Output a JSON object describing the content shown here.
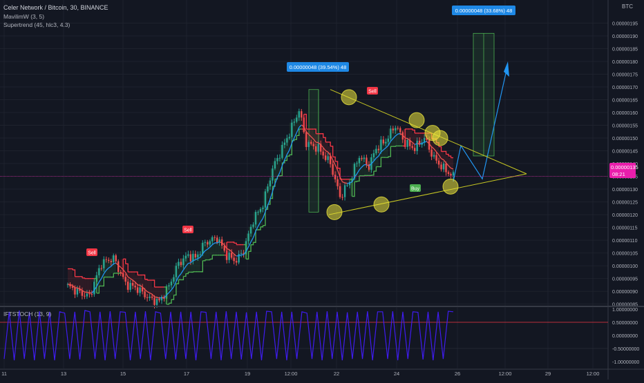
{
  "header": {
    "symbol_line": "Celer Network / Bitcoin, 30, BINANCE",
    "indicators": [
      "MavilimW (3, 5)",
      "Supertrend (45, hlc3, 4.3)"
    ],
    "currency": "BTC"
  },
  "oscillator": {
    "label": "IFTSTOCH (13, 9)"
  },
  "price_label": {
    "value": "0.00000135",
    "countdown": "08:21"
  },
  "measure_labels": [
    "0.00000048 (39.54%) 48",
    "0.00000048 (33.68%) 48"
  ],
  "signals": [
    "Sell",
    "Sell",
    "Sell",
    "Buy"
  ],
  "colors": {
    "background": "#131722",
    "bull": "#26a69a",
    "bear": "#ef5350",
    "supertrend_up": "#4caf50",
    "supertrend_down": "#f23645",
    "projection": "#2196f3",
    "trendline": "#c8c822",
    "price_label": "#e91eab",
    "oscillator": "#3f1cf0"
  },
  "chart_data": [
    {
      "type": "candlestick",
      "title": "Celer Network / Bitcoin, 30, BINANCE",
      "y_axis": {
        "ylim": [
          8.1e-07,
          1.96e-06
        ],
        "tick_labels": [
          "0.00000085",
          "0.00000090",
          "0.00000095",
          "0.00000100",
          "0.00000105",
          "0.00000110",
          "0.00000115",
          "0.00000120",
          "0.00000125",
          "0.00000130",
          "0.00000135",
          "0.00000140",
          "0.00000145",
          "0.00000150",
          "0.00000155",
          "0.00000160",
          "0.00000165",
          "0.00000170",
          "0.00000175",
          "0.00000180",
          "0.00000185",
          "0.00000190",
          "0.00000195"
        ]
      },
      "x_axis": {
        "tick_labels": [
          "11",
          "13",
          "15",
          "17",
          "19",
          "12:00",
          "22",
          "24",
          "26",
          "12:00",
          "29",
          "12:00"
        ]
      },
      "grid": true,
      "price_anchors": [
        [
          0,
          9.2e-07
        ],
        [
          6,
          8.9e-07
        ],
        [
          9,
          8.8e-07
        ],
        [
          14,
          1.01e-06
        ],
        [
          19,
          1.03e-06
        ],
        [
          24,
          9.3e-07
        ],
        [
          29,
          9.1e-07
        ],
        [
          34,
          8.7e-07
        ],
        [
          38,
          8.6e-07
        ],
        [
          42,
          9.2e-07
        ],
        [
          46,
          1.01e-06
        ],
        [
          50,
          1.04e-06
        ],
        [
          53,
          1.03e-06
        ],
        [
          57,
          1.09e-06
        ],
        [
          62,
          1.11e-06
        ],
        [
          66,
          1.04e-06
        ],
        [
          70,
          1.02e-06
        ],
        [
          73,
          1.06e-06
        ],
        [
          77,
          1.18e-06
        ],
        [
          81,
          1.24e-06
        ],
        [
          85,
          1.38e-06
        ],
        [
          88,
          1.44e-06
        ],
        [
          92,
          1.52e-06
        ],
        [
          96,
          1.61e-06
        ],
        [
          99,
          1.48e-06
        ],
        [
          104,
          1.46e-06
        ],
        [
          109,
          1.4e-06
        ],
        [
          113,
          1.27e-06
        ],
        [
          117,
          1.33e-06
        ],
        [
          121,
          1.43e-06
        ],
        [
          125,
          1.39e-06
        ],
        [
          128,
          1.46e-06
        ],
        [
          132,
          1.49e-06
        ],
        [
          136,
          1.55e-06
        ],
        [
          140,
          1.48e-06
        ],
        [
          144,
          1.46e-06
        ],
        [
          148,
          1.5e-06
        ],
        [
          152,
          1.42e-06
        ],
        [
          156,
          1.38e-06
        ],
        [
          160,
          1.35e-06
        ]
      ],
      "annotations": [
        {
          "text": "Sell",
          "type": "sell"
        },
        {
          "text": "Sell",
          "type": "sell"
        },
        {
          "text": "Sell",
          "type": "sell"
        },
        {
          "text": "Buy",
          "type": "buy"
        },
        {
          "text": "0.00000048 (39.54%) 48",
          "type": "measure"
        },
        {
          "text": "0.00000048 (33.68%) 48",
          "type": "measure"
        }
      ]
    },
    {
      "type": "line",
      "title": "IFTSTOCH (13, 9)",
      "y_axis": {
        "ylim": [
          -1.05,
          1.05
        ],
        "tick_labels": [
          "1.00000000",
          "0.50000000",
          "0.00000000",
          "-0.50000000",
          "-1.00000000"
        ]
      },
      "series": [
        {
          "values": [
            -0.9,
            0.9,
            -0.95,
            0.95,
            -0.9,
            0.9,
            -0.95,
            0.92,
            -0.9,
            0.9,
            -0.95,
            0.9,
            0.85,
            -0.9,
            0.9,
            -0.92,
            0.95,
            0.9,
            -0.9,
            0.9,
            -0.95,
            0.92,
            -0.9,
            0.9,
            0.88,
            -0.95,
            0.9,
            -0.9,
            0.92,
            -0.95,
            0.9,
            0.85,
            -0.9,
            0.9,
            -0.92,
            0.9,
            -0.9,
            0.9,
            -0.95,
            0.9,
            0.88,
            -0.9,
            0.9,
            -0.95,
            0.92,
            -0.9,
            0.9,
            -0.92,
            0.88,
            -0.9,
            0.9,
            -0.95,
            0.92,
            0.9,
            -0.9,
            0.9,
            -0.95,
            0.9,
            -0.9,
            0.9,
            0.85,
            -0.9,
            0.9,
            -0.95,
            0.92,
            -0.9,
            0.9,
            -0.95,
            0.88,
            -0.9,
            0.9,
            -0.9,
            0.92,
            -0.95,
            0.9,
            0.9,
            -0.9,
            0.92,
            -0.95,
            0.9,
            -0.9,
            0.9,
            0.88,
            -0.92,
            0.9,
            -0.95,
            0.9,
            -0.9,
            0.92,
            0.9
          ]
        }
      ]
    }
  ]
}
